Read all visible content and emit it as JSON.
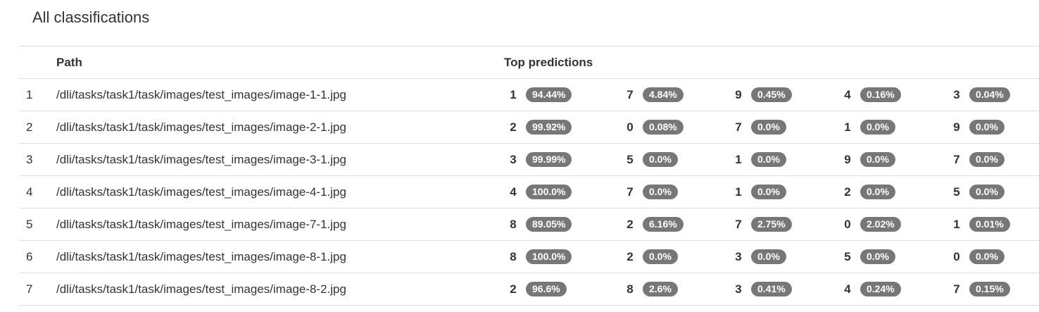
{
  "title": "All classifications",
  "headers": {
    "index": "",
    "path": "Path",
    "predictions": "Top predictions"
  },
  "rows": [
    {
      "index": "1",
      "path": "/dli/tasks/task1/task/images/test_images/image-1-1.jpg",
      "predictions": [
        {
          "label": "1",
          "pct": "94.44%"
        },
        {
          "label": "7",
          "pct": "4.84%"
        },
        {
          "label": "9",
          "pct": "0.45%"
        },
        {
          "label": "4",
          "pct": "0.16%"
        },
        {
          "label": "3",
          "pct": "0.04%"
        }
      ]
    },
    {
      "index": "2",
      "path": "/dli/tasks/task1/task/images/test_images/image-2-1.jpg",
      "predictions": [
        {
          "label": "2",
          "pct": "99.92%"
        },
        {
          "label": "0",
          "pct": "0.08%"
        },
        {
          "label": "7",
          "pct": "0.0%"
        },
        {
          "label": "1",
          "pct": "0.0%"
        },
        {
          "label": "9",
          "pct": "0.0%"
        }
      ]
    },
    {
      "index": "3",
      "path": "/dli/tasks/task1/task/images/test_images/image-3-1.jpg",
      "predictions": [
        {
          "label": "3",
          "pct": "99.99%"
        },
        {
          "label": "5",
          "pct": "0.0%"
        },
        {
          "label": "1",
          "pct": "0.0%"
        },
        {
          "label": "9",
          "pct": "0.0%"
        },
        {
          "label": "7",
          "pct": "0.0%"
        }
      ]
    },
    {
      "index": "4",
      "path": "/dli/tasks/task1/task/images/test_images/image-4-1.jpg",
      "predictions": [
        {
          "label": "4",
          "pct": "100.0%"
        },
        {
          "label": "7",
          "pct": "0.0%"
        },
        {
          "label": "1",
          "pct": "0.0%"
        },
        {
          "label": "2",
          "pct": "0.0%"
        },
        {
          "label": "5",
          "pct": "0.0%"
        }
      ]
    },
    {
      "index": "5",
      "path": "/dli/tasks/task1/task/images/test_images/image-7-1.jpg",
      "predictions": [
        {
          "label": "8",
          "pct": "89.05%"
        },
        {
          "label": "2",
          "pct": "6.16%"
        },
        {
          "label": "7",
          "pct": "2.75%"
        },
        {
          "label": "0",
          "pct": "2.02%"
        },
        {
          "label": "1",
          "pct": "0.01%"
        }
      ]
    },
    {
      "index": "6",
      "path": "/dli/tasks/task1/task/images/test_images/image-8-1.jpg",
      "predictions": [
        {
          "label": "8",
          "pct": "100.0%"
        },
        {
          "label": "2",
          "pct": "0.0%"
        },
        {
          "label": "3",
          "pct": "0.0%"
        },
        {
          "label": "5",
          "pct": "0.0%"
        },
        {
          "label": "0",
          "pct": "0.0%"
        }
      ]
    },
    {
      "index": "7",
      "path": "/dli/tasks/task1/task/images/test_images/image-8-2.jpg",
      "predictions": [
        {
          "label": "2",
          "pct": "96.6%"
        },
        {
          "label": "8",
          "pct": "2.6%"
        },
        {
          "label": "3",
          "pct": "0.41%"
        },
        {
          "label": "4",
          "pct": "0.24%"
        },
        {
          "label": "7",
          "pct": "0.15%"
        }
      ]
    }
  ]
}
